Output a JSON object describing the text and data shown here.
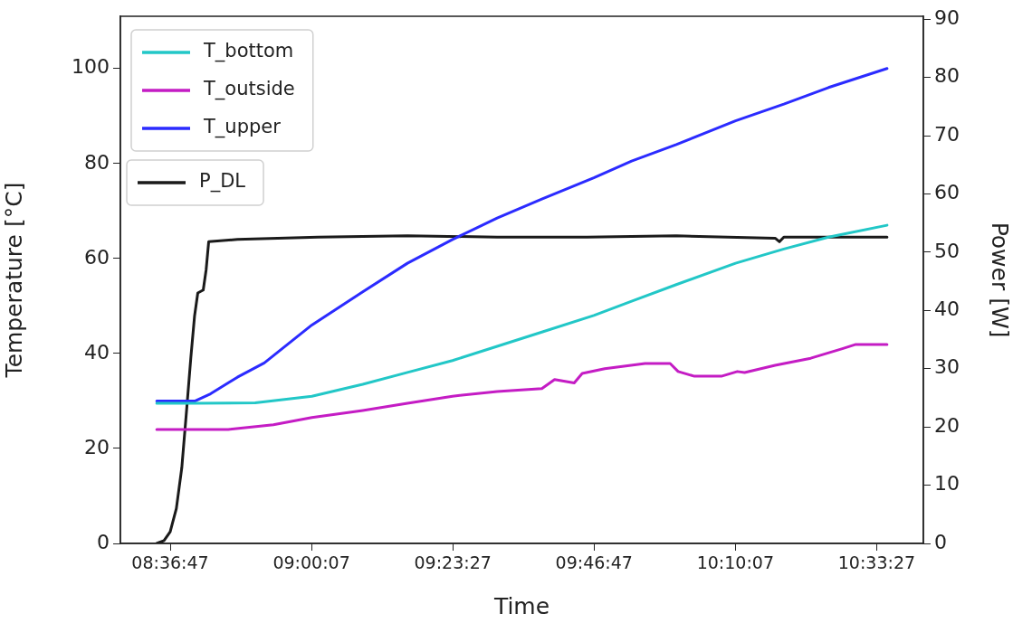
{
  "chart_data": {
    "type": "line",
    "xlabel": "Time",
    "ylabel": "Temperature [°C]",
    "y2label": "Power [W]",
    "xlim": [
      8.476,
      10.686
    ],
    "xticks": [
      {
        "value": 8.61306,
        "label": "08:36:47"
      },
      {
        "value": 9.00194,
        "label": "09:00:07"
      },
      {
        "value": 9.39083,
        "label": "09:23:27"
      },
      {
        "value": 9.77972,
        "label": "09:46:47"
      },
      {
        "value": 10.16861,
        "label": "10:10:07"
      },
      {
        "value": 10.5575,
        "label": "10:33:27"
      }
    ],
    "ylim": [
      0,
      111
    ],
    "yticks": [
      0,
      20,
      40,
      60,
      80,
      100
    ],
    "y2lim": [
      0,
      90.5
    ],
    "y2ticks": [
      0,
      10,
      20,
      30,
      40,
      50,
      60,
      70,
      80,
      90
    ],
    "grid": false,
    "legend": "top left",
    "marker": "none",
    "line_style": "solid",
    "series": [
      {
        "name": "T_bottom",
        "color": "#22c7c7",
        "x": [
          8.576,
          8.682,
          8.847,
          9.003,
          9.143,
          9.266,
          9.39,
          9.513,
          9.636,
          9.779,
          9.883,
          10.006,
          10.169,
          10.302,
          10.425,
          10.586
        ],
        "values": [
          29.5,
          29.5,
          29.6,
          31,
          33.5,
          36,
          38.5,
          41.5,
          44.5,
          48,
          51,
          54.5,
          59,
          62,
          64.5,
          67
        ]
      },
      {
        "name": "T_outside",
        "color": "#c41cc4",
        "x": [
          8.576,
          8.773,
          8.897,
          9.003,
          9.143,
          9.266,
          9.39,
          9.513,
          9.636,
          9.671,
          9.725,
          9.747,
          9.809,
          9.92,
          9.989,
          10.011,
          10.056,
          10.13,
          10.174,
          10.194,
          10.278,
          10.376,
          10.463,
          10.5,
          10.586
        ],
        "values": [
          24,
          24,
          25,
          26.5,
          28,
          29.5,
          31,
          32,
          32.6,
          34.5,
          33.8,
          35.8,
          36.8,
          37.9,
          37.9,
          36.2,
          35.2,
          35.2,
          36.2,
          36,
          37.5,
          39,
          41,
          41.9,
          41.9
        ]
      },
      {
        "name": "T_upper",
        "color": "#2b2bff",
        "x": [
          8.576,
          8.682,
          8.724,
          8.798,
          8.872,
          9.003,
          9.143,
          9.266,
          9.39,
          9.513,
          9.636,
          9.779,
          9.883,
          10.006,
          10.169,
          10.302,
          10.425,
          10.586
        ],
        "values": [
          30,
          30,
          31.5,
          35,
          38,
          46,
          53,
          59,
          64,
          68.5,
          72.5,
          77,
          80.5,
          84,
          89,
          92.5,
          96,
          100
        ]
      },
      {
        "name": "P_DL",
        "color": "#1a1a1a",
        "axis": "y2",
        "x": [
          8.576,
          8.596,
          8.613,
          8.63,
          8.645,
          8.657,
          8.67,
          8.68,
          8.689,
          8.704,
          8.712,
          8.719,
          8.798,
          9.02,
          9.266,
          9.513,
          9.76,
          10.006,
          10.278,
          10.29,
          10.302,
          10.586
        ],
        "values": [
          0,
          0.5,
          2,
          6,
          13,
          22,
          32,
          39,
          43,
          43.5,
          47,
          51.8,
          52.2,
          52.6,
          52.8,
          52.6,
          52.6,
          52.8,
          52.4,
          51.8,
          52.6,
          52.6
        ]
      }
    ]
  }
}
